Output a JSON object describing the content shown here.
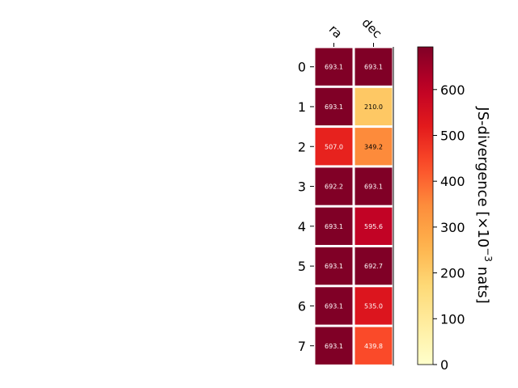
{
  "chart_data": {
    "type": "heatmap",
    "title": "",
    "columns": [
      "ra",
      "dec"
    ],
    "rows": [
      "0",
      "1",
      "2",
      "3",
      "4",
      "5",
      "6",
      "7"
    ],
    "values": [
      [
        693.1,
        693.1
      ],
      [
        693.1,
        210.0
      ],
      [
        507.0,
        349.2
      ],
      [
        692.2,
        693.1
      ],
      [
        693.1,
        595.6
      ],
      [
        693.1,
        692.7
      ],
      [
        693.1,
        535.0
      ],
      [
        693.1,
        439.8
      ]
    ],
    "cell_labels": [
      [
        "693.1",
        "693.1"
      ],
      [
        "693.1",
        "210.0"
      ],
      [
        "507.0",
        "349.2"
      ],
      [
        "692.2",
        "693.1"
      ],
      [
        "693.1",
        "595.6"
      ],
      [
        "693.1",
        "692.7"
      ],
      [
        "693.1",
        "535.0"
      ],
      [
        "693.1",
        "439.8"
      ]
    ],
    "colorbar": {
      "label_prefix": "JS-divergence [×10",
      "label_exponent": "−3",
      "label_suffix": " nats]",
      "range": [
        0,
        693.1
      ],
      "ticks": [
        0,
        100,
        200,
        300,
        400,
        500,
        600
      ],
      "tick_labels": [
        "0",
        "100",
        "200",
        "300",
        "400",
        "500",
        "600"
      ],
      "colormap": "YlOrRd"
    }
  }
}
